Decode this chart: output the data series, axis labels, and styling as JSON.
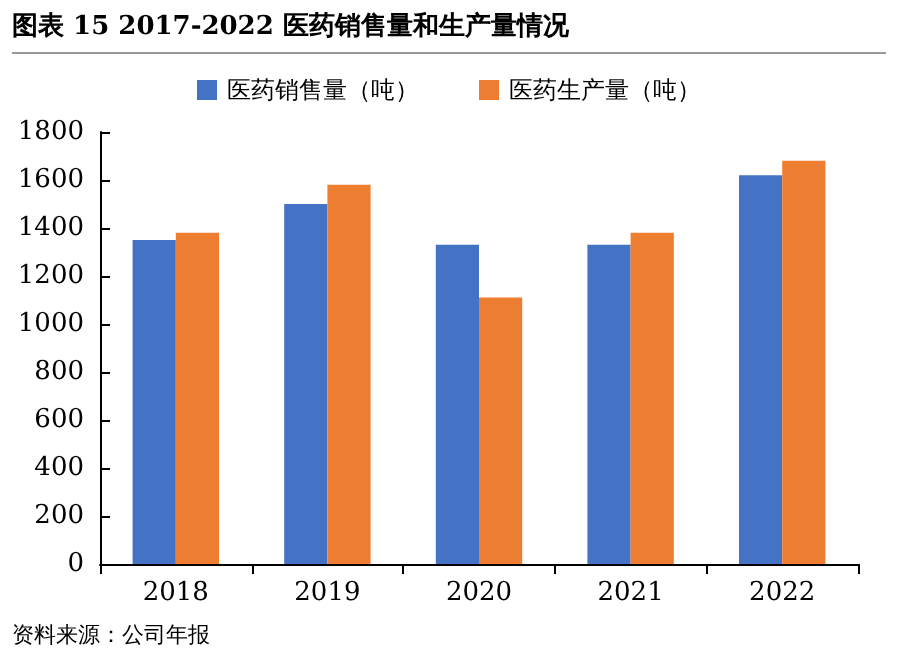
{
  "chart_data": {
    "type": "bar",
    "title": "图表 15 2017-2022 医药销售量和生产量情况",
    "categories": [
      "2018",
      "2019",
      "2020",
      "2021",
      "2022"
    ],
    "series": [
      {
        "name": "医药销售量（吨）",
        "color": "#4472c4",
        "values": [
          1350,
          1500,
          1330,
          1330,
          1620
        ]
      },
      {
        "name": "医药生产量（吨）",
        "color": "#ed7d31",
        "values": [
          1380,
          1580,
          1110,
          1380,
          1680
        ]
      }
    ],
    "ylim": [
      0,
      1800
    ],
    "yticks": [
      0,
      200,
      400,
      600,
      800,
      1000,
      1200,
      1400,
      1600,
      1800
    ],
    "grid": false,
    "legend": "top",
    "annotations": [
      "资料来源：公司年报"
    ]
  }
}
